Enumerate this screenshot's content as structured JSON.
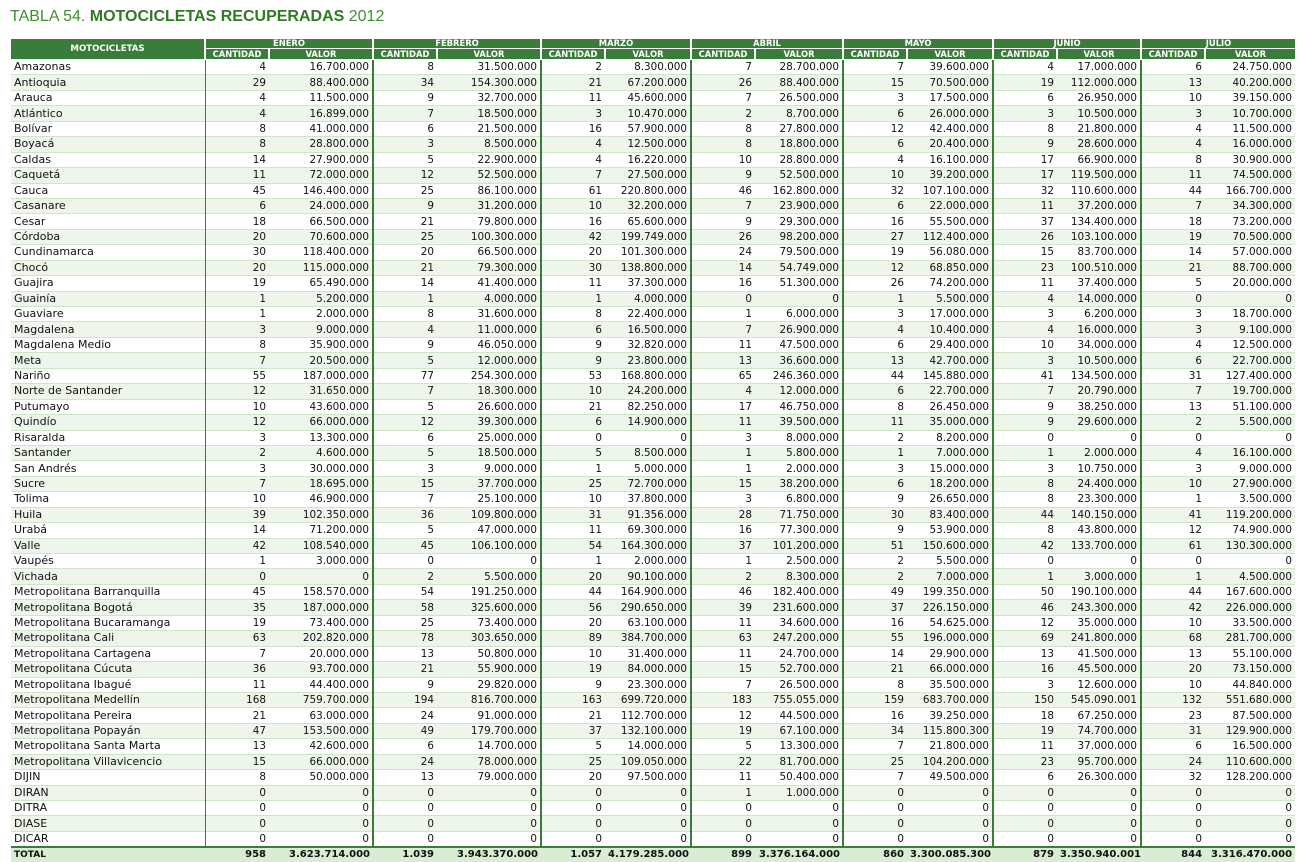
{
  "title": {
    "prefix": "TABLA 54.",
    "main": "MOTOCICLETAS RECUPERADAS",
    "year": "2012"
  },
  "table": {
    "row_header": "MOTOCICLETAS",
    "months": [
      "ENERO",
      "FEBRERO",
      "MARZO",
      "ABRIL",
      "MAYO",
      "JUNIO",
      "JULIO"
    ],
    "sub_cols": [
      "CANTIDAD",
      "VALOR"
    ],
    "rows": [
      [
        "Amazonas",
        "4",
        "16.700.000",
        "8",
        "31.500.000",
        "2",
        "8.300.000",
        "7",
        "28.700.000",
        "7",
        "39.600.000",
        "4",
        "17.000.000",
        "6",
        "24.750.000"
      ],
      [
        "Antioquia",
        "29",
        "88.400.000",
        "34",
        "154.300.000",
        "21",
        "67.200.000",
        "26",
        "88.400.000",
        "15",
        "70.500.000",
        "19",
        "112.000.000",
        "13",
        "40.200.000"
      ],
      [
        "Arauca",
        "4",
        "11.500.000",
        "9",
        "32.700.000",
        "11",
        "45.600.000",
        "7",
        "26.500.000",
        "3",
        "17.500.000",
        "6",
        "26.950.000",
        "10",
        "39.150.000"
      ],
      [
        "Atlántico",
        "4",
        "16.899.000",
        "7",
        "18.500.000",
        "3",
        "10.470.000",
        "2",
        "8.700.000",
        "6",
        "26.000.000",
        "3",
        "10.500.000",
        "3",
        "10.700.000"
      ],
      [
        "Bolívar",
        "8",
        "41.000.000",
        "6",
        "21.500.000",
        "16",
        "57.900.000",
        "8",
        "27.800.000",
        "12",
        "42.400.000",
        "8",
        "21.800.000",
        "4",
        "11.500.000"
      ],
      [
        "Boyacá",
        "8",
        "28.800.000",
        "3",
        "8.500.000",
        "4",
        "12.500.000",
        "8",
        "18.800.000",
        "6",
        "20.400.000",
        "9",
        "28.600.000",
        "4",
        "16.000.000"
      ],
      [
        "Caldas",
        "14",
        "27.900.000",
        "5",
        "22.900.000",
        "4",
        "16.220.000",
        "10",
        "28.800.000",
        "4",
        "16.100.000",
        "17",
        "66.900.000",
        "8",
        "30.900.000"
      ],
      [
        "Caquetá",
        "11",
        "72.000.000",
        "12",
        "52.500.000",
        "7",
        "27.500.000",
        "9",
        "52.500.000",
        "10",
        "39.200.000",
        "17",
        "119.500.000",
        "11",
        "74.500.000"
      ],
      [
        "Cauca",
        "45",
        "146.400.000",
        "25",
        "86.100.000",
        "61",
        "220.800.000",
        "46",
        "162.800.000",
        "32",
        "107.100.000",
        "32",
        "110.600.000",
        "44",
        "166.700.000"
      ],
      [
        "Casanare",
        "6",
        "24.000.000",
        "9",
        "31.200.000",
        "10",
        "32.200.000",
        "7",
        "23.900.000",
        "6",
        "22.000.000",
        "11",
        "37.200.000",
        "7",
        "34.300.000"
      ],
      [
        "Cesar",
        "18",
        "66.500.000",
        "21",
        "79.800.000",
        "16",
        "65.600.000",
        "9",
        "29.300.000",
        "16",
        "55.500.000",
        "37",
        "134.400.000",
        "18",
        "73.200.000"
      ],
      [
        "Córdoba",
        "20",
        "70.600.000",
        "25",
        "100.300.000",
        "42",
        "199.749.000",
        "26",
        "98.200.000",
        "27",
        "112.400.000",
        "26",
        "103.100.000",
        "19",
        "70.500.000"
      ],
      [
        "Cundinamarca",
        "30",
        "118.400.000",
        "20",
        "66.500.000",
        "20",
        "101.300.000",
        "24",
        "79.500.000",
        "19",
        "56.080.000",
        "15",
        "83.700.000",
        "14",
        "57.000.000"
      ],
      [
        "Chocó",
        "20",
        "115.000.000",
        "21",
        "79.300.000",
        "30",
        "138.800.000",
        "14",
        "54.749.000",
        "12",
        "68.850.000",
        "23",
        "100.510.000",
        "21",
        "88.700.000"
      ],
      [
        "Guajira",
        "19",
        "65.490.000",
        "14",
        "41.400.000",
        "11",
        "37.300.000",
        "16",
        "51.300.000",
        "26",
        "74.200.000",
        "11",
        "37.400.000",
        "5",
        "20.000.000"
      ],
      [
        "Guainía",
        "1",
        "5.200.000",
        "1",
        "4.000.000",
        "1",
        "4.000.000",
        "0",
        "0",
        "1",
        "5.500.000",
        "4",
        "14.000.000",
        "0",
        "0"
      ],
      [
        "Guaviare",
        "1",
        "2.000.000",
        "8",
        "31.600.000",
        "8",
        "22.400.000",
        "1",
        "6.000.000",
        "3",
        "17.000.000",
        "3",
        "6.200.000",
        "3",
        "18.700.000"
      ],
      [
        "Magdalena",
        "3",
        "9.000.000",
        "4",
        "11.000.000",
        "6",
        "16.500.000",
        "7",
        "26.900.000",
        "4",
        "10.400.000",
        "4",
        "16.000.000",
        "3",
        "9.100.000"
      ],
      [
        "Magdalena Medio",
        "8",
        "35.900.000",
        "9",
        "46.050.000",
        "9",
        "32.820.000",
        "11",
        "47.500.000",
        "6",
        "29.400.000",
        "10",
        "34.000.000",
        "4",
        "12.500.000"
      ],
      [
        "Meta",
        "7",
        "20.500.000",
        "5",
        "12.000.000",
        "9",
        "23.800.000",
        "13",
        "36.600.000",
        "13",
        "42.700.000",
        "3",
        "10.500.000",
        "6",
        "22.700.000"
      ],
      [
        "Nariño",
        "55",
        "187.000.000",
        "77",
        "254.300.000",
        "53",
        "168.800.000",
        "65",
        "246.360.000",
        "44",
        "145.880.000",
        "41",
        "134.500.000",
        "31",
        "127.400.000"
      ],
      [
        "Norte de Santander",
        "12",
        "31.650.000",
        "7",
        "18.300.000",
        "10",
        "24.200.000",
        "4",
        "12.000.000",
        "6",
        "22.700.000",
        "7",
        "20.790.000",
        "7",
        "19.700.000"
      ],
      [
        "Putumayo",
        "10",
        "43.600.000",
        "5",
        "26.600.000",
        "21",
        "82.250.000",
        "17",
        "46.750.000",
        "8",
        "26.450.000",
        "9",
        "38.250.000",
        "13",
        "51.100.000"
      ],
      [
        "Quindío",
        "12",
        "66.000.000",
        "12",
        "39.300.000",
        "6",
        "14.900.000",
        "11",
        "39.500.000",
        "11",
        "35.000.000",
        "9",
        "29.600.000",
        "2",
        "5.500.000"
      ],
      [
        "Risaralda",
        "3",
        "13.300.000",
        "6",
        "25.000.000",
        "0",
        "0",
        "3",
        "8.000.000",
        "2",
        "8.200.000",
        "0",
        "0",
        "0",
        "0"
      ],
      [
        "Santander",
        "2",
        "4.600.000",
        "5",
        "18.500.000",
        "5",
        "8.500.000",
        "1",
        "5.800.000",
        "1",
        "7.000.000",
        "1",
        "2.000.000",
        "4",
        "16.100.000"
      ],
      [
        "San Andrés",
        "3",
        "30.000.000",
        "3",
        "9.000.000",
        "1",
        "5.000.000",
        "1",
        "2.000.000",
        "3",
        "15.000.000",
        "3",
        "10.750.000",
        "3",
        "9.000.000"
      ],
      [
        "Sucre",
        "7",
        "18.695.000",
        "15",
        "37.700.000",
        "25",
        "72.700.000",
        "15",
        "38.200.000",
        "6",
        "18.200.000",
        "8",
        "24.400.000",
        "10",
        "27.900.000"
      ],
      [
        "Tolima",
        "10",
        "46.900.000",
        "7",
        "25.100.000",
        "10",
        "37.800.000",
        "3",
        "6.800.000",
        "9",
        "26.650.000",
        "8",
        "23.300.000",
        "1",
        "3.500.000"
      ],
      [
        "Huila",
        "39",
        "102.350.000",
        "36",
        "109.800.000",
        "31",
        "91.356.000",
        "28",
        "71.750.000",
        "30",
        "83.400.000",
        "44",
        "140.150.000",
        "41",
        "119.200.000"
      ],
      [
        "Urabá",
        "14",
        "71.200.000",
        "5",
        "47.000.000",
        "11",
        "69.300.000",
        "16",
        "77.300.000",
        "9",
        "53.900.000",
        "8",
        "43.800.000",
        "12",
        "74.900.000"
      ],
      [
        "Valle",
        "42",
        "108.540.000",
        "45",
        "106.100.000",
        "54",
        "164.300.000",
        "37",
        "101.200.000",
        "51",
        "150.600.000",
        "42",
        "133.700.000",
        "61",
        "130.300.000"
      ],
      [
        "Vaupés",
        "1",
        "3.000.000",
        "0",
        "0",
        "1",
        "2.000.000",
        "1",
        "2.500.000",
        "2",
        "5.500.000",
        "0",
        "0",
        "0",
        "0"
      ],
      [
        "Vichada",
        "0",
        "0",
        "2",
        "5.500.000",
        "20",
        "90.100.000",
        "2",
        "8.300.000",
        "2",
        "7.000.000",
        "1",
        "3.000.000",
        "1",
        "4.500.000"
      ],
      [
        "Metropolitana Barranquilla",
        "45",
        "158.570.000",
        "54",
        "191.250.000",
        "44",
        "164.900.000",
        "46",
        "182.400.000",
        "49",
        "199.350.000",
        "50",
        "190.100.000",
        "44",
        "167.600.000"
      ],
      [
        "Metropolitana Bogotá",
        "35",
        "187.000.000",
        "58",
        "325.600.000",
        "56",
        "290.650.000",
        "39",
        "231.600.000",
        "37",
        "226.150.000",
        "46",
        "243.300.000",
        "42",
        "226.000.000"
      ],
      [
        "Metropolitana Bucaramanga",
        "19",
        "73.400.000",
        "25",
        "73.400.000",
        "20",
        "63.100.000",
        "11",
        "34.600.000",
        "16",
        "54.625.000",
        "12",
        "35.000.000",
        "10",
        "33.500.000"
      ],
      [
        "Metropolitana Cali",
        "63",
        "202.820.000",
        "78",
        "303.650.000",
        "89",
        "384.700.000",
        "63",
        "247.200.000",
        "55",
        "196.000.000",
        "69",
        "241.800.000",
        "68",
        "281.700.000"
      ],
      [
        "Metropolitana Cartagena",
        "7",
        "20.000.000",
        "13",
        "50.800.000",
        "10",
        "31.400.000",
        "11",
        "24.700.000",
        "14",
        "29.900.000",
        "13",
        "41.500.000",
        "13",
        "55.100.000"
      ],
      [
        "Metropolitana Cúcuta",
        "36",
        "93.700.000",
        "21",
        "55.900.000",
        "19",
        "84.000.000",
        "15",
        "52.700.000",
        "21",
        "66.000.000",
        "16",
        "45.500.000",
        "20",
        "73.150.000"
      ],
      [
        "Metropolitana Ibagué",
        "11",
        "44.400.000",
        "9",
        "29.820.000",
        "9",
        "23.300.000",
        "7",
        "26.500.000",
        "8",
        "35.500.000",
        "3",
        "12.600.000",
        "10",
        "44.840.000"
      ],
      [
        "Metropolitana Medellín",
        "168",
        "759.700.000",
        "194",
        "816.700.000",
        "163",
        "699.720.000",
        "183",
        "755.055.000",
        "159",
        "683.700.000",
        "150",
        "545.090.001",
        "132",
        "551.680.000"
      ],
      [
        "Metropolitana Pereira",
        "21",
        "63.000.000",
        "24",
        "91.000.000",
        "21",
        "112.700.000",
        "12",
        "44.500.000",
        "16",
        "39.250.000",
        "18",
        "67.250.000",
        "23",
        "87.500.000"
      ],
      [
        "Metropolitana Popayán",
        "47",
        "153.500.000",
        "49",
        "179.700.000",
        "37",
        "132.100.000",
        "19",
        "67.100.000",
        "34",
        "115.800.300",
        "19",
        "74.700.000",
        "31",
        "129.900.000"
      ],
      [
        "Metropolitana Santa Marta",
        "13",
        "42.600.000",
        "6",
        "14.700.000",
        "5",
        "14.000.000",
        "5",
        "13.300.000",
        "7",
        "21.800.000",
        "11",
        "37.000.000",
        "6",
        "16.500.000"
      ],
      [
        "Metropolitana Villavicencio",
        "15",
        "66.000.000",
        "24",
        "78.000.000",
        "25",
        "109.050.000",
        "22",
        "81.700.000",
        "25",
        "104.200.000",
        "23",
        "95.700.000",
        "24",
        "110.600.000"
      ],
      [
        "DIJIN",
        "8",
        "50.000.000",
        "13",
        "79.000.000",
        "20",
        "97.500.000",
        "11",
        "50.400.000",
        "7",
        "49.500.000",
        "6",
        "26.300.000",
        "32",
        "128.200.000"
      ],
      [
        "DIRAN",
        "0",
        "0",
        "0",
        "0",
        "0",
        "0",
        "1",
        "1.000.000",
        "0",
        "0",
        "0",
        "0",
        "0",
        "0"
      ],
      [
        "DITRA",
        "0",
        "0",
        "0",
        "0",
        "0",
        "0",
        "0",
        "0",
        "0",
        "0",
        "0",
        "0",
        "0",
        "0"
      ],
      [
        "DIASE",
        "0",
        "0",
        "0",
        "0",
        "0",
        "0",
        "0",
        "0",
        "0",
        "0",
        "0",
        "0",
        "0",
        "0"
      ],
      [
        "DICAR",
        "0",
        "0",
        "0",
        "0",
        "0",
        "0",
        "0",
        "0",
        "0",
        "0",
        "0",
        "0",
        "0",
        "0"
      ]
    ],
    "total": [
      "TOTAL",
      "958",
      "3.623.714.000",
      "1.039",
      "3.943.370.000",
      "1.057",
      "4.179.285.000",
      "899",
      "3.376.164.000",
      "860",
      "3.300.085.300",
      "879",
      "3.350.940.001",
      "844",
      "3.316.470.000"
    ]
  }
}
